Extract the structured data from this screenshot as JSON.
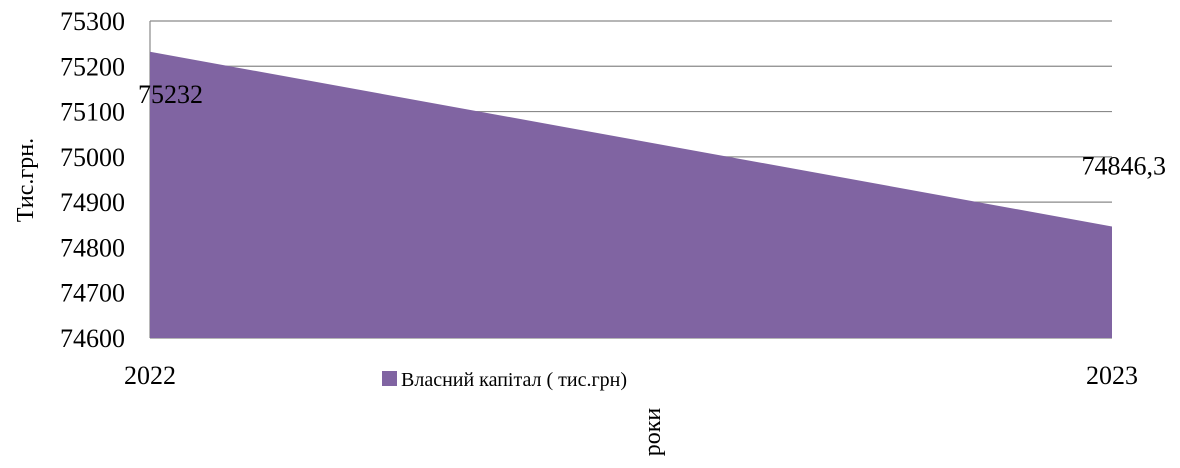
{
  "chart_data": {
    "type": "area",
    "categories": [
      "2022",
      "2023"
    ],
    "series": [
      {
        "name": "Власний капітал ( тис.грн)",
        "values": [
          75232,
          74846.3
        ],
        "color": "#8064A2"
      }
    ],
    "data_labels": [
      "75232",
      "74846,3"
    ],
    "xlabel": "роки",
    "ylabel": "Тис.грн.",
    "ylim": [
      74600,
      75300
    ],
    "yticks": [
      74600,
      74700,
      74800,
      74900,
      75000,
      75100,
      75200,
      75300
    ],
    "grid": true,
    "legend": "bottom"
  }
}
